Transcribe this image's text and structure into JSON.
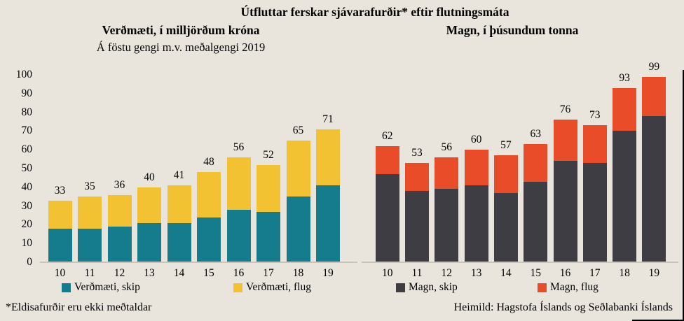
{
  "title": "Útfluttar ferskar sjávarafurðir* eftir flutningsmáta",
  "footnote": "*Eldisafurðir  eru ekki meðtaldar",
  "source": "Heimild:  Hagstofa Íslands og Seðlabanki Íslands",
  "colors": {
    "background": "#e9e5dd",
    "value_ship": "#147c8d",
    "value_air": "#f3c233",
    "qty_ship": "#3e3d43",
    "qty_air": "#e94c28",
    "axis_line": "#c9c5bd",
    "text": "#000000",
    "frame": "#000000"
  },
  "chart_data": [
    {
      "type": "bar",
      "stacked": true,
      "title": "Verðmæti, í milljörðum króna",
      "subtitle": "Á föstu gengi m.v. meðalgengi 2019",
      "categories": [
        "10",
        "11",
        "12",
        "13",
        "14",
        "15",
        "16",
        "17",
        "18",
        "19"
      ],
      "series": [
        {
          "name": "Verðmæti, skip",
          "color": "#147c8d",
          "values": [
            18,
            18,
            19,
            21,
            21,
            24,
            28,
            27,
            35,
            41
          ]
        },
        {
          "name": "Verðmæti, flug",
          "color": "#f3c233",
          "values": [
            15,
            17,
            17,
            19,
            20,
            24,
            28,
            25,
            30,
            30
          ]
        }
      ],
      "totals": [
        33,
        35,
        36,
        40,
        41,
        48,
        56,
        52,
        65,
        71
      ],
      "ylabel": "",
      "xlabel": "",
      "ylim": [
        0,
        100
      ],
      "y_ticks": [
        0,
        10,
        20,
        30,
        40,
        50,
        60,
        70,
        80,
        90,
        100
      ],
      "show_y_axis": true,
      "grid": false,
      "data_labels": "totals-above-bars",
      "legend_position": "bottom"
    },
    {
      "type": "bar",
      "stacked": true,
      "title": "Magn, í þúsundum tonna",
      "subtitle": "",
      "categories": [
        "10",
        "11",
        "12",
        "13",
        "14",
        "15",
        "16",
        "17",
        "18",
        "19"
      ],
      "series": [
        {
          "name": "Magn, skip",
          "color": "#3e3d43",
          "values": [
            47,
            38,
            39,
            41,
            37,
            43,
            54,
            53,
            70,
            78
          ]
        },
        {
          "name": "Magn, flug",
          "color": "#e94c28",
          "values": [
            15,
            15,
            17,
            19,
            20,
            20,
            22,
            20,
            23,
            21
          ]
        }
      ],
      "totals": [
        62,
        53,
        56,
        60,
        57,
        63,
        76,
        73,
        93,
        99
      ],
      "ylabel": "",
      "xlabel": "",
      "ylim": [
        0,
        100
      ],
      "y_ticks": [],
      "show_y_axis": false,
      "grid": false,
      "data_labels": "totals-above-bars",
      "legend_position": "bottom"
    }
  ]
}
